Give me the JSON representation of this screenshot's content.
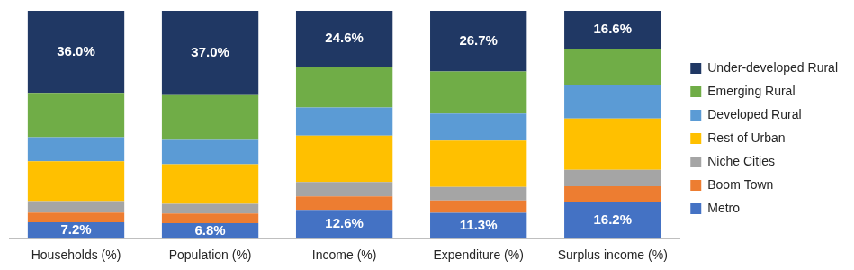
{
  "chart_data": {
    "type": "bar",
    "stacked": true,
    "grid": false,
    "legend": "right",
    "tick_labels": "x",
    "categories": [
      "Households (%)",
      "Population (%)",
      "Income (%)",
      "Expenditure (%)",
      "Surplus income (%)"
    ],
    "ylim": [
      0,
      100
    ],
    "series": [
      {
        "name": "Metro",
        "color": "#4472c4",
        "values": [
          7.2,
          6.8,
          12.6,
          11.3,
          16.2
        ],
        "data_labels": true,
        "value_labels": [
          "7.2%",
          "6.8%",
          "12.6%",
          "11.3%",
          "16.2%"
        ]
      },
      {
        "name": "Boom Town",
        "color": "#ed7d31",
        "values": [
          4.2,
          4.2,
          5.9,
          5.5,
          6.8
        ]
      },
      {
        "name": "Niche Cities",
        "color": "#a5a5a5",
        "values": [
          5.1,
          4.3,
          6.4,
          5.9,
          7.2
        ]
      },
      {
        "name": "Rest of Urban",
        "color": "#ffc000",
        "values": [
          17.4,
          17.4,
          20.3,
          20.3,
          22.5
        ]
      },
      {
        "name": "Developed Rural",
        "color": "#5b9bd5",
        "values": [
          10.6,
          10.6,
          12.3,
          11.9,
          14.8
        ]
      },
      {
        "name": "Emerging Rural",
        "color": "#70ad47",
        "values": [
          19.5,
          19.7,
          17.9,
          18.4,
          15.9
        ]
      },
      {
        "name": "Under-developed Rural",
        "color": "#203864",
        "values": [
          36.0,
          37.0,
          24.6,
          26.7,
          16.6
        ],
        "data_labels": true,
        "value_labels": [
          "36.0%",
          "37.0%",
          "24.6%",
          "26.7%",
          "16.6%"
        ]
      }
    ]
  }
}
